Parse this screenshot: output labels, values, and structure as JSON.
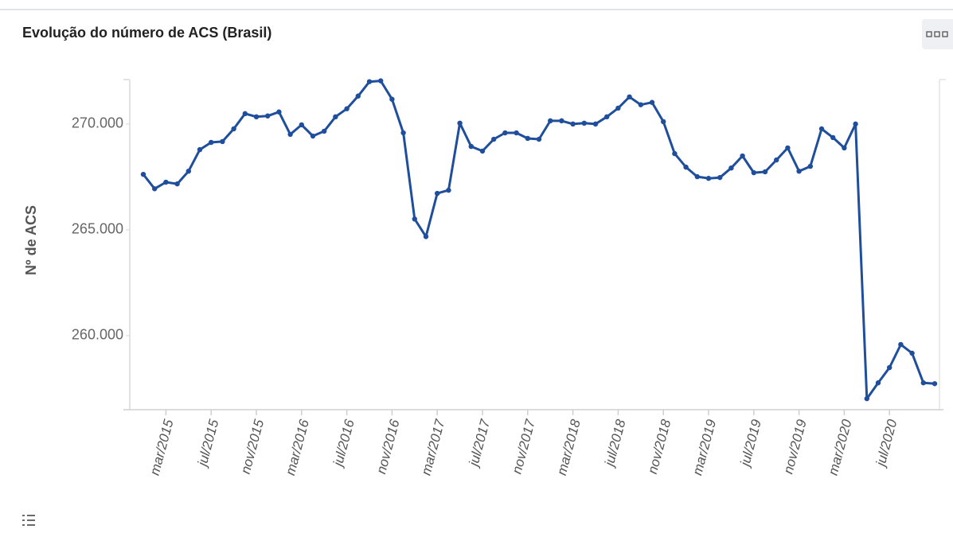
{
  "chart_data": {
    "type": "line",
    "title": "Evolução do número de ACS (Brasil)",
    "y_label": "Nº de ACS",
    "color": "#1f4e9c",
    "categories": [
      null,
      null,
      "mar/2015",
      null,
      null,
      null,
      "jul/2015",
      null,
      null,
      null,
      "nov/2015",
      null,
      null,
      null,
      "mar/2016",
      null,
      null,
      null,
      "jul/2016",
      null,
      null,
      null,
      "nov/2016",
      null,
      null,
      null,
      "mar/2017",
      null,
      null,
      null,
      "jul/2017",
      null,
      null,
      null,
      "nov/2017",
      null,
      null,
      null,
      "mar/2018",
      null,
      null,
      null,
      "jul/2018",
      null,
      null,
      null,
      "nov/2018",
      null,
      null,
      null,
      "mar/2019",
      null,
      null,
      null,
      "jul/2019",
      null,
      null,
      null,
      "nov/2019",
      null,
      null,
      null,
      "mar/2020",
      null,
      null,
      null,
      "jul/2020",
      null,
      null,
      null,
      null
    ],
    "values": [
      267620,
      266940,
      267250,
      267170,
      267770,
      268790,
      269130,
      269170,
      269770,
      270490,
      270340,
      270380,
      270570,
      269510,
      269960,
      269430,
      269660,
      270340,
      270720,
      271320,
      272000,
      272040,
      271170,
      269580,
      265510,
      264680,
      266720,
      266870,
      270040,
      268940,
      268720,
      269280,
      269580,
      269580,
      269320,
      269280,
      270150,
      270150,
      270000,
      270040,
      270000,
      270340,
      270750,
      271280,
      270910,
      271020,
      270110,
      268600,
      267960,
      267510,
      267430,
      267470,
      267920,
      268490,
      267700,
      267740,
      268300,
      268870,
      267770,
      268000,
      269770,
      269360,
      268870,
      270000,
      257020,
      257770,
      258490,
      259580,
      259170,
      257770,
      257730
    ],
    "ylim": [
      256500,
      272100
    ],
    "yticks": [
      {
        "value": 260000,
        "label": "260.000"
      },
      {
        "value": 265000,
        "label": "265.000"
      },
      {
        "value": 270000,
        "label": "270.000"
      }
    ]
  }
}
